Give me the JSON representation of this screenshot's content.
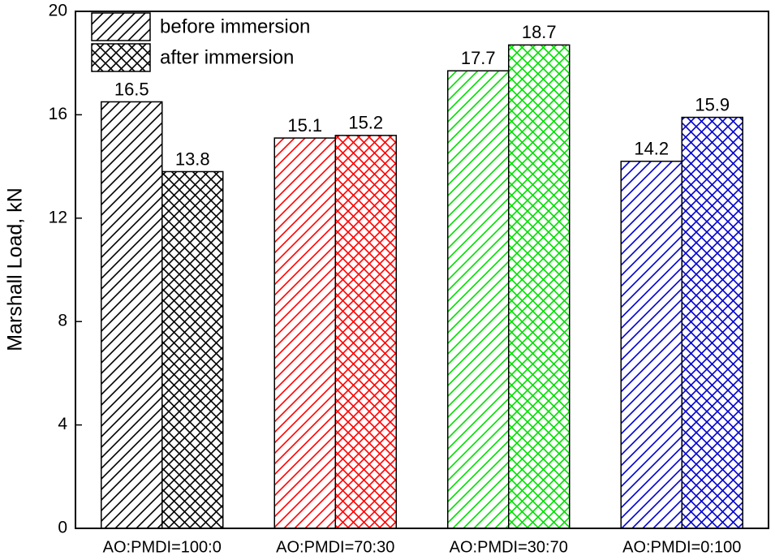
{
  "chart_data": {
    "type": "bar",
    "y_label": "Marshall Load, kN",
    "categories": [
      "AO:PMDI=100:0",
      "AO:PMDI=70:30",
      "AO:PMDI=30:70",
      "AO:PMDI=0:100"
    ],
    "category_colors": [
      "#000000",
      "#ff0000",
      "#00dd00",
      "#0000cc"
    ],
    "series": [
      {
        "name": "before immersion",
        "hatch": "diagonal",
        "values": [
          16.5,
          15.1,
          17.7,
          14.2
        ]
      },
      {
        "name": "after immersion",
        "hatch": "cross",
        "values": [
          13.8,
          15.2,
          18.7,
          15.9
        ]
      }
    ],
    "ylim": [
      0,
      20
    ],
    "yticks": [
      0,
      4,
      8,
      12,
      16,
      20
    ],
    "grid": false,
    "legend": "upper left"
  }
}
